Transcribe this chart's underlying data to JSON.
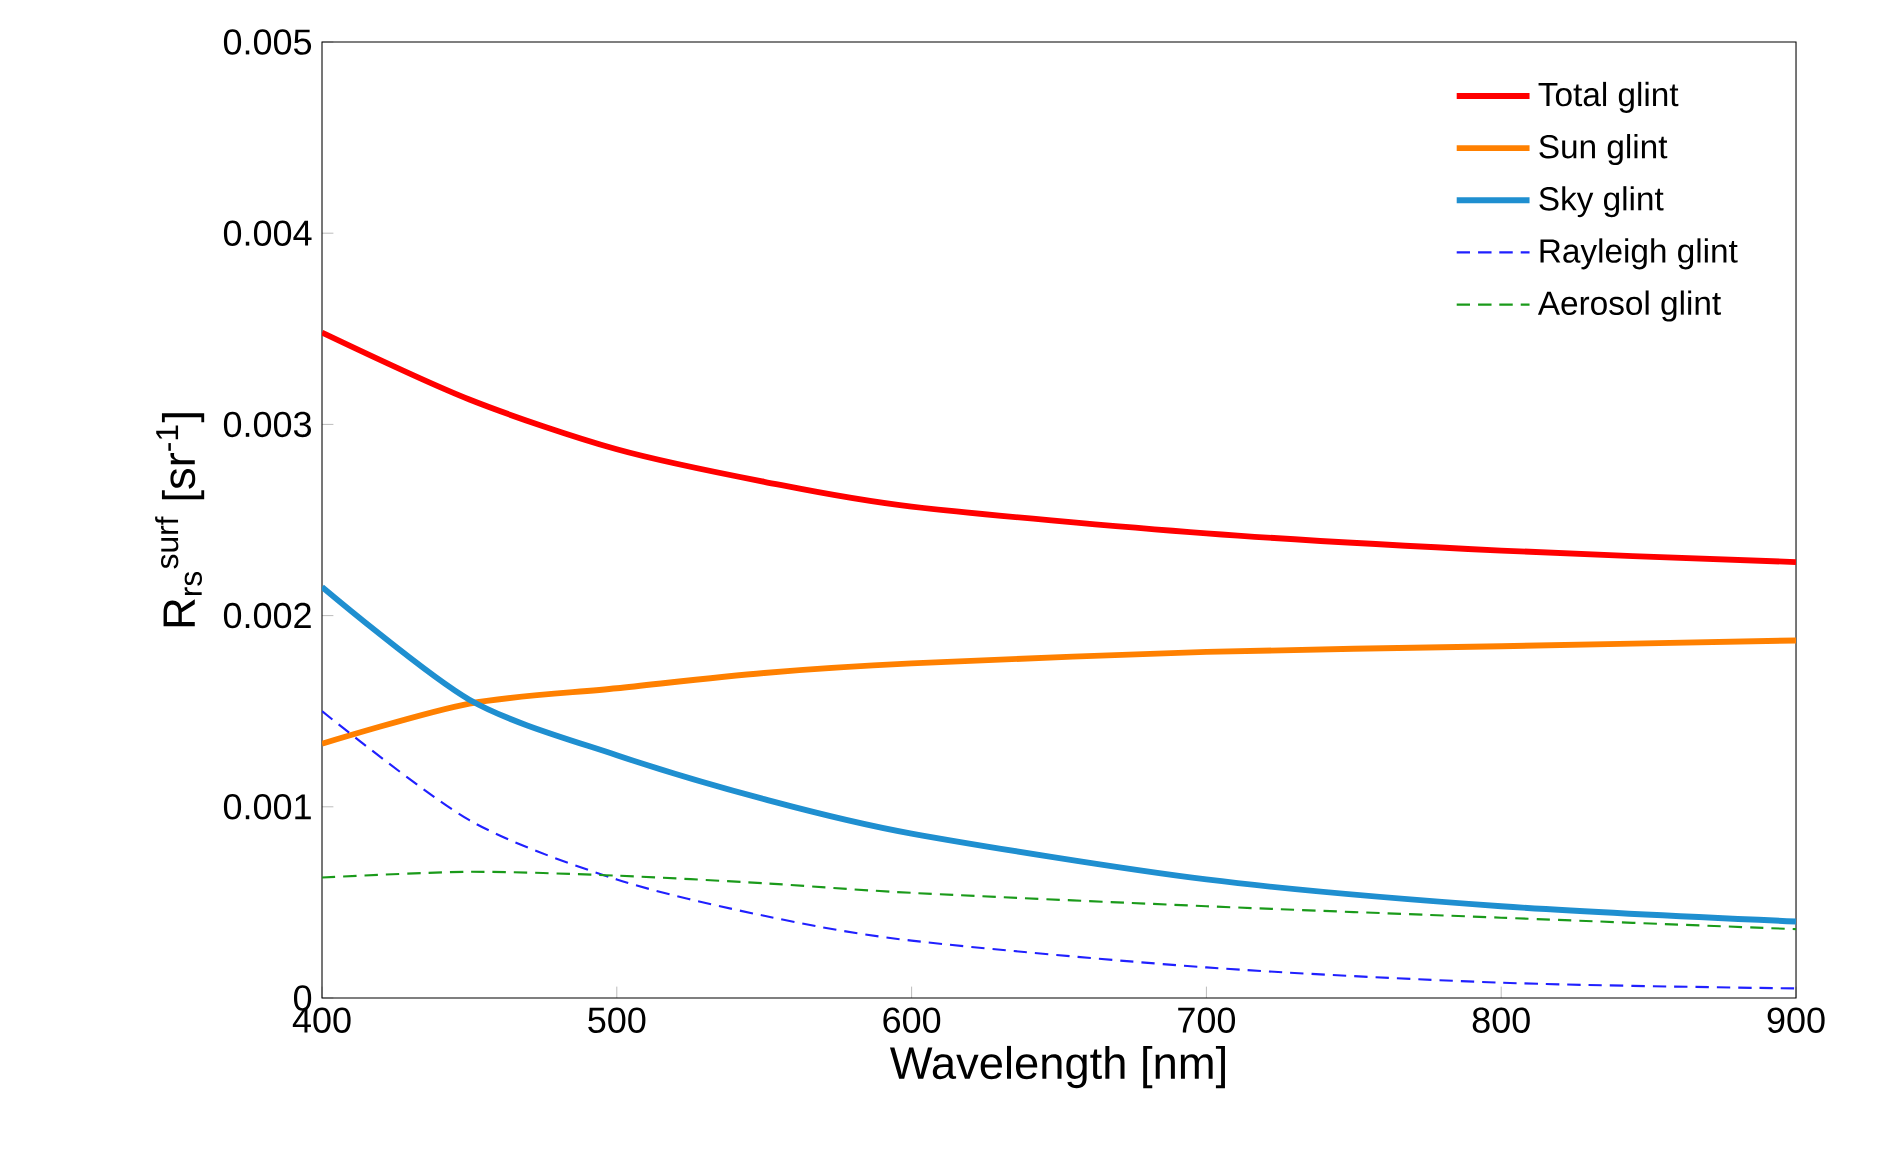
{
  "chart_data": {
    "type": "line",
    "xlabel": "Wavelength [nm]",
    "ylabel": "R$_{rs}$$^{surf}$ [sr$^{-1}$]",
    "x": [
      400,
      450,
      500,
      550,
      600,
      700,
      800,
      900
    ],
    "xlim": [
      400,
      900
    ],
    "xticks": [
      400,
      500,
      600,
      700,
      800,
      900
    ],
    "ylim": [
      0,
      0.005
    ],
    "yticks": [
      0,
      0.001,
      0.002,
      0.003,
      0.004,
      0.005
    ],
    "grid": false,
    "legend": "top right",
    "marker": "none",
    "series": [
      {
        "name": "Total glint",
        "color": "#ff0000",
        "line_style": "solid",
        "values": [
          0.00348,
          0.00313,
          0.00287,
          0.0027,
          0.00257,
          0.00243,
          0.00234,
          0.00228
        ]
      },
      {
        "name": "Sun glint",
        "color": "#ff8000",
        "line_style": "solid",
        "values": [
          0.00133,
          0.00154,
          0.00162,
          0.0017,
          0.00175,
          0.00181,
          0.00184,
          0.00187
        ]
      },
      {
        "name": "Sky glint",
        "color": "#1f8fd0",
        "line_style": "solid",
        "values": [
          0.00215,
          0.00156,
          0.00127,
          0.00104,
          0.00086,
          0.00062,
          0.00048,
          0.0004
        ]
      },
      {
        "name": "Rayleigh glint",
        "color": "#2020ff",
        "line_style": "dashed",
        "values": [
          0.0015,
          0.00093,
          0.00062,
          0.00043,
          0.0003,
          0.00016,
          8e-05,
          5e-05
        ]
      },
      {
        "name": "Aerosol glint",
        "color": "#1a9a1a",
        "line_style": "dashed",
        "values": [
          0.00063,
          0.00066,
          0.00064,
          0.0006,
          0.00055,
          0.00048,
          0.00042,
          0.00036
        ]
      }
    ]
  }
}
